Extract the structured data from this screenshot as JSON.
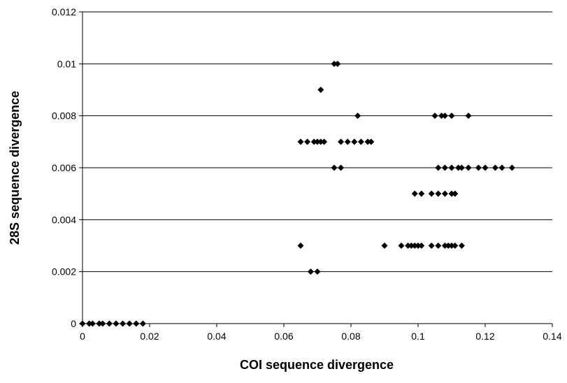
{
  "chart_data": {
    "type": "scatter",
    "title": "",
    "xlabel": "COI sequence divergence",
    "ylabel": "28S sequence divergence",
    "xlim": [
      0,
      0.14
    ],
    "ylim": [
      0,
      0.012
    ],
    "x_ticks": [
      "0",
      "0.02",
      "0.04",
      "0.06",
      "0.08",
      "0.1",
      "0.12",
      "0.14"
    ],
    "y_ticks": [
      "0",
      "0.002",
      "0.004",
      "0.006",
      "0.008",
      "0.01",
      "0.012"
    ],
    "horizontal_gridlines": true,
    "marker": "diamond",
    "marker_color": "#000000",
    "points": [
      [
        0.0,
        0.0
      ],
      [
        0.002,
        0.0
      ],
      [
        0.003,
        0.0
      ],
      [
        0.005,
        0.0
      ],
      [
        0.006,
        0.0
      ],
      [
        0.008,
        0.0
      ],
      [
        0.01,
        0.0
      ],
      [
        0.012,
        0.0
      ],
      [
        0.014,
        0.0
      ],
      [
        0.016,
        0.0
      ],
      [
        0.018,
        0.0
      ],
      [
        0.068,
        0.002
      ],
      [
        0.07,
        0.002
      ],
      [
        0.065,
        0.003
      ],
      [
        0.09,
        0.003
      ],
      [
        0.095,
        0.003
      ],
      [
        0.097,
        0.003
      ],
      [
        0.098,
        0.003
      ],
      [
        0.099,
        0.003
      ],
      [
        0.1,
        0.003
      ],
      [
        0.101,
        0.003
      ],
      [
        0.104,
        0.003
      ],
      [
        0.106,
        0.003
      ],
      [
        0.108,
        0.003
      ],
      [
        0.109,
        0.003
      ],
      [
        0.11,
        0.003
      ],
      [
        0.111,
        0.003
      ],
      [
        0.113,
        0.003
      ],
      [
        0.099,
        0.005
      ],
      [
        0.101,
        0.005
      ],
      [
        0.104,
        0.005
      ],
      [
        0.106,
        0.005
      ],
      [
        0.108,
        0.005
      ],
      [
        0.11,
        0.005
      ],
      [
        0.111,
        0.005
      ],
      [
        0.075,
        0.006
      ],
      [
        0.077,
        0.006
      ],
      [
        0.106,
        0.006
      ],
      [
        0.108,
        0.006
      ],
      [
        0.11,
        0.006
      ],
      [
        0.112,
        0.006
      ],
      [
        0.113,
        0.006
      ],
      [
        0.115,
        0.006
      ],
      [
        0.118,
        0.006
      ],
      [
        0.12,
        0.006
      ],
      [
        0.123,
        0.006
      ],
      [
        0.125,
        0.006
      ],
      [
        0.128,
        0.006
      ],
      [
        0.065,
        0.007
      ],
      [
        0.067,
        0.007
      ],
      [
        0.069,
        0.007
      ],
      [
        0.07,
        0.007
      ],
      [
        0.071,
        0.007
      ],
      [
        0.072,
        0.007
      ],
      [
        0.077,
        0.007
      ],
      [
        0.079,
        0.007
      ],
      [
        0.081,
        0.007
      ],
      [
        0.083,
        0.007
      ],
      [
        0.085,
        0.007
      ],
      [
        0.086,
        0.007
      ],
      [
        0.082,
        0.008
      ],
      [
        0.105,
        0.008
      ],
      [
        0.107,
        0.008
      ],
      [
        0.108,
        0.008
      ],
      [
        0.11,
        0.008
      ],
      [
        0.115,
        0.008
      ],
      [
        0.071,
        0.009
      ],
      [
        0.075,
        0.01
      ],
      [
        0.076,
        0.01
      ]
    ]
  }
}
